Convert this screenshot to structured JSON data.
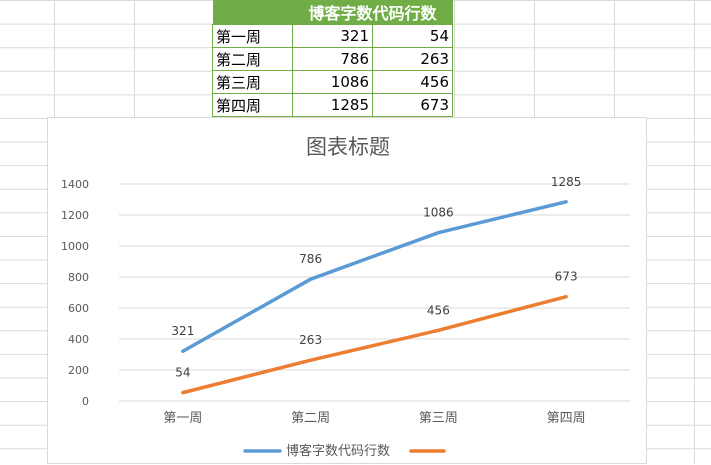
{
  "table": {
    "header": "博客字数代码行数",
    "rows": [
      {
        "week": "第一周",
        "a": "321",
        "b": "54"
      },
      {
        "week": "第二周",
        "a": "786",
        "b": "263"
      },
      {
        "week": "第三周",
        "a": "1086",
        "b": "456"
      },
      {
        "week": "第四周",
        "a": "1285",
        "b": "673"
      }
    ],
    "header_color": "#70ad47"
  },
  "chart_data": {
    "type": "line",
    "title": "图表标题",
    "categories": [
      "第一周",
      "第二周",
      "第三周",
      "第四周"
    ],
    "series": [
      {
        "name": "博客字数代码行数",
        "values": [
          321,
          786,
          1086,
          1285
        ],
        "color": "#5b9bd5"
      },
      {
        "name": "",
        "values": [
          54,
          263,
          456,
          673
        ],
        "color": "#ed7d31"
      }
    ],
    "ylim": [
      0,
      1400
    ],
    "yticks": [
      0,
      200,
      400,
      600,
      800,
      1000,
      1200,
      1400
    ],
    "grid": true,
    "legend": "bottom",
    "data_labels": true
  }
}
